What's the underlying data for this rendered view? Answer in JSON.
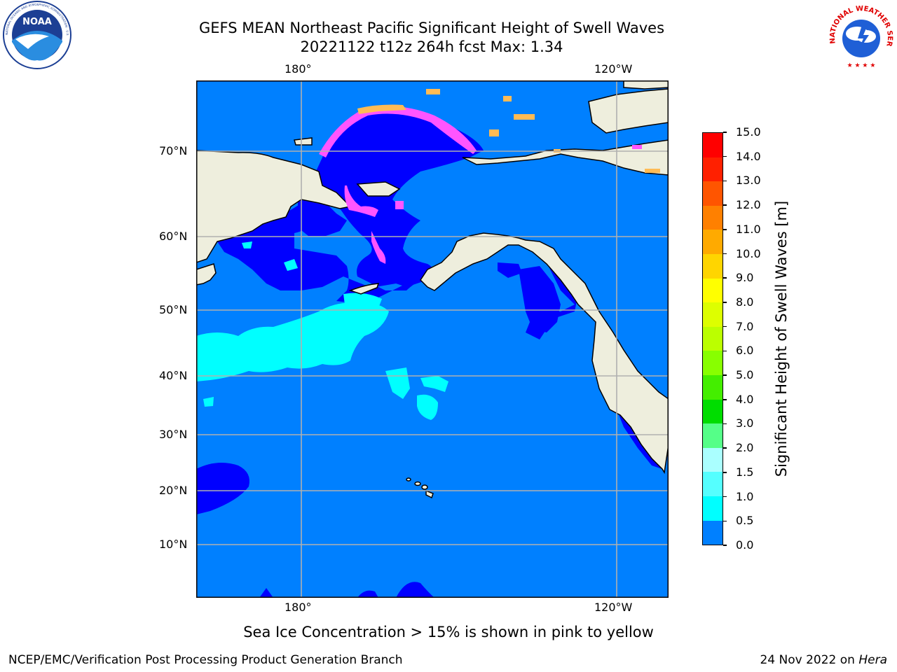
{
  "header": {
    "title_line1": "GEFS MEAN Northeast Pacific Significant Height of Swell Waves",
    "title_line2": "20221122 t12z 264h fcst   Max: 1.34"
  },
  "logos": {
    "left_text": "NOAA",
    "left_ring": "NATIONAL OCEANIC AND ATMOSPHERIC ADMINISTRATION · U.S. DEPARTMENT OF COMMERCE",
    "right_ring": "NATIONAL WEATHER SERVICE"
  },
  "map": {
    "lon_labels_top": [
      "180°",
      "120°W"
    ],
    "lon_labels_bottom": [
      "180°",
      "120°W"
    ],
    "lat_labels": [
      "70°N",
      "60°N",
      "50°N",
      "40°N",
      "30°N",
      "20°N",
      "10°N"
    ],
    "colors": {
      "land": "#eeeedd",
      "ocean_0_05": "#0000ff",
      "ocean_05_10": "#0080ff",
      "ocean_10_15": "#00ffff",
      "ice_pink": "#ff55ff",
      "ice_orange": "#ffbb55",
      "grid": "#b0b0b0"
    }
  },
  "colorbar": {
    "label": "Significant Height of Swell Waves [m]",
    "ticks": [
      "15.0",
      "14.0",
      "13.0",
      "12.0",
      "11.0",
      "10.0",
      "9.0",
      "8.0",
      "7.0",
      "6.0",
      "5.0",
      "4.0",
      "3.0",
      "2.0",
      "1.5",
      "1.0",
      "0.5",
      "0.0"
    ],
    "colors": [
      "#ff0000",
      "#ff2000",
      "#ff5500",
      "#ff8000",
      "#ffaa00",
      "#ffd500",
      "#ffff00",
      "#ddff00",
      "#bbff00",
      "#88ff00",
      "#44ee00",
      "#00dd00",
      "#55ff88",
      "#aaffff",
      "#55ffff",
      "#00ffff",
      "#0080ff",
      "#0000ff"
    ]
  },
  "note": "Sea Ice Concentration > 15% is shown in pink to yellow",
  "footer": {
    "left": "NCEP/EMC/Verification Post Processing Product Generation Branch",
    "date": "24 Nov 2022 on ",
    "host": "Hera"
  }
}
